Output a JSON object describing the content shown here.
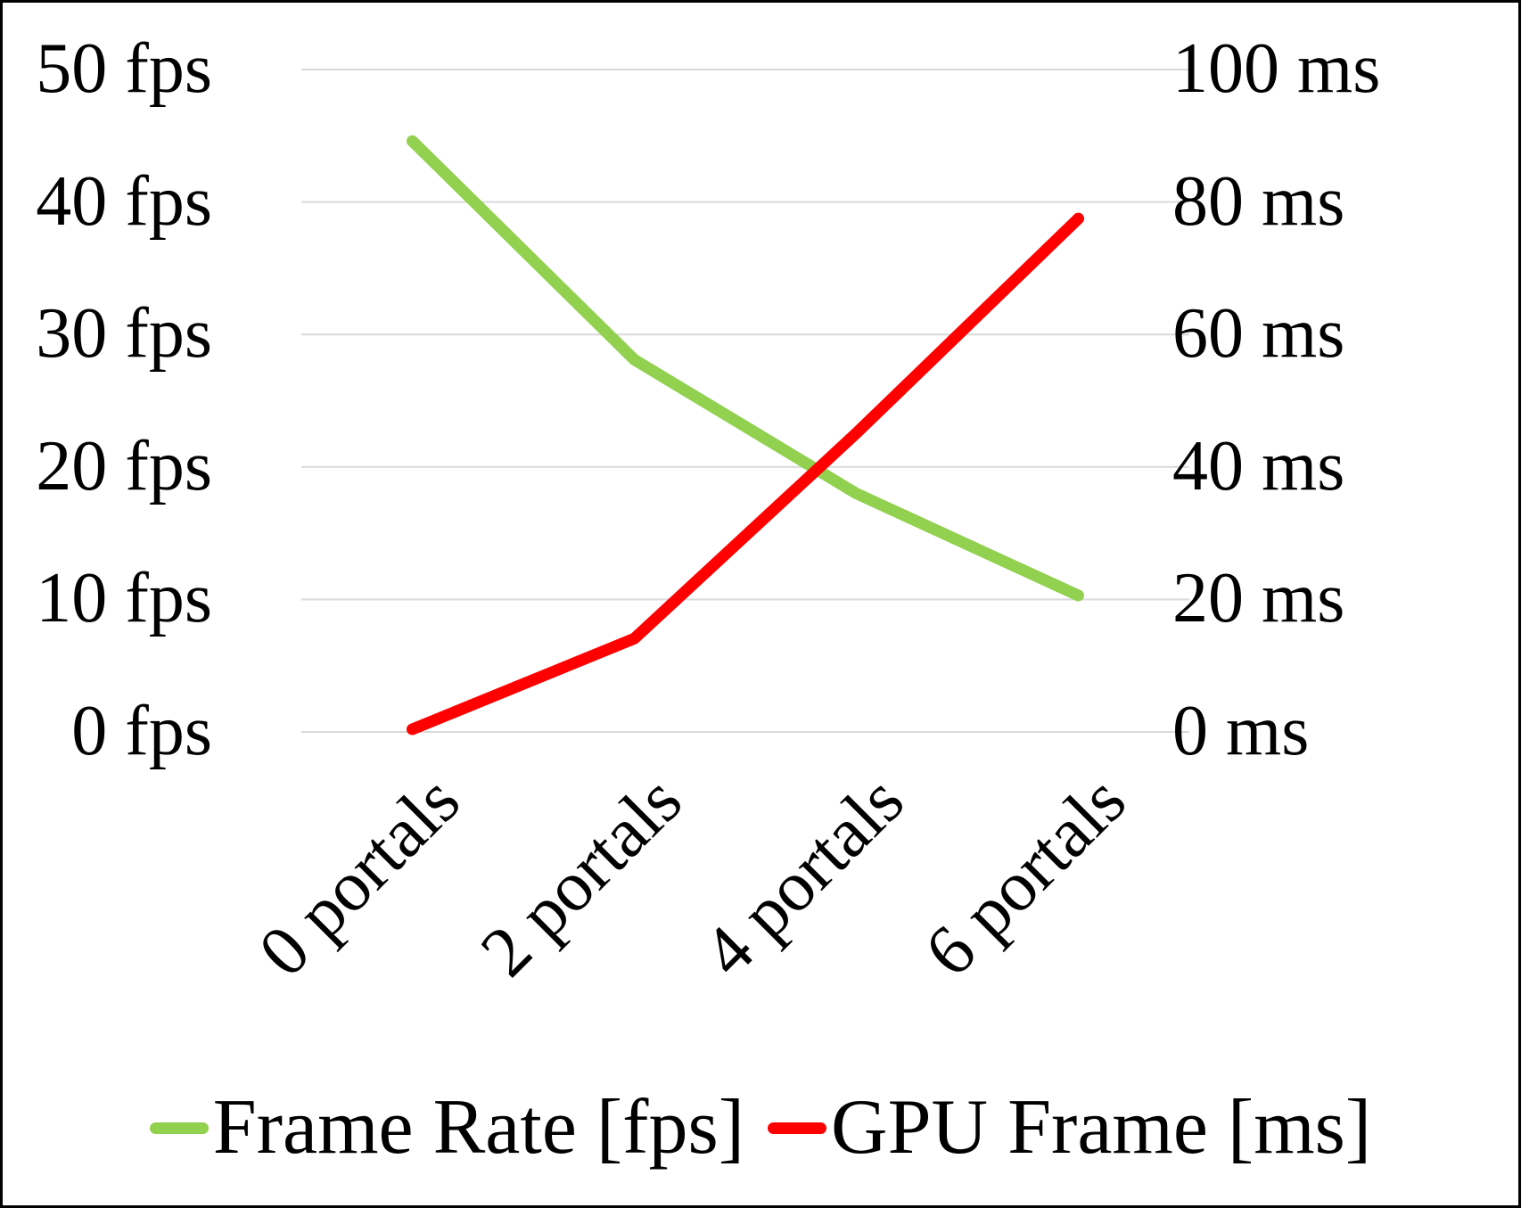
{
  "chart_data": {
    "type": "line",
    "categories": [
      "0 portals",
      "2 portals",
      "4 portals",
      "6 portals"
    ],
    "series": [
      {
        "name": "Frame Rate [fps]",
        "axis": "left",
        "color": "#92D050",
        "values": [
          44.6,
          28.1,
          18.0,
          10.3
        ]
      },
      {
        "name": "GPU Frame [ms]",
        "axis": "right",
        "color": "#FF0000",
        "values": [
          0.4,
          14.1,
          45.1,
          77.5
        ]
      }
    ],
    "left_axis": {
      "min": 0,
      "max": 50,
      "unit": "fps",
      "ticks": [
        "0 fps",
        "10 fps",
        "20 fps",
        "30 fps",
        "40 fps",
        "50 fps"
      ]
    },
    "right_axis": {
      "min": 0,
      "max": 100,
      "unit": "ms",
      "ticks": [
        "0 ms",
        "20 ms",
        "40 ms",
        "60 ms",
        "80 ms",
        "100 ms"
      ]
    },
    "grid": true,
    "gridline_color": "#D9D9D9",
    "legend_position": "bottom",
    "background_color": "#FFFFFF",
    "text_color": "#000000"
  }
}
